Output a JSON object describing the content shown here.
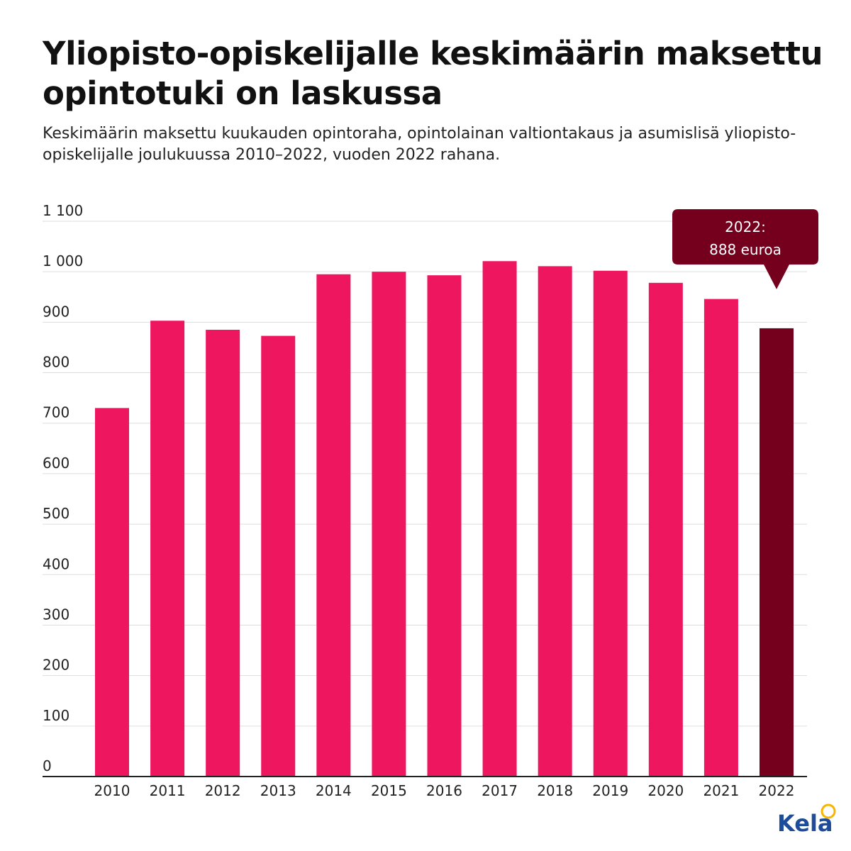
{
  "chart_data": {
    "type": "bar",
    "title": "Yliopisto-opiskelijalle keskimäärin maksettu opintotuki on laskussa",
    "subtitle": "Keskimäärin maksettu kuukauden opintoraha, opintolainan valtiontakaus ja asumislisä yliopisto-opiskelijalle joulukuussa 2010–2022, vuoden 2022 rahana.",
    "categories": [
      "2010",
      "2011",
      "2012",
      "2013",
      "2014",
      "2015",
      "2016",
      "2017",
      "2018",
      "2019",
      "2020",
      "2021",
      "2022"
    ],
    "values": [
      730,
      903,
      885,
      873,
      995,
      1000,
      993,
      1021,
      1011,
      1002,
      978,
      946,
      888
    ],
    "ylim": [
      0,
      1100
    ],
    "yticks": [
      0,
      100,
      200,
      300,
      400,
      500,
      600,
      700,
      800,
      900,
      1000,
      1100
    ],
    "ytick_labels": [
      "0",
      "100",
      "200",
      "300",
      "400",
      "500",
      "600",
      "700",
      "800",
      "900",
      "1 000",
      "1 100"
    ],
    "grid": true,
    "colors": {
      "bar": "#ee165f",
      "highlight": "#74001e",
      "grid": "#dddddd",
      "axis": "#222222"
    },
    "highlight_index": 12,
    "annotation": {
      "line1": "2022:",
      "line2": "888 euroa"
    }
  },
  "logo": {
    "text": "Kela",
    "color": "#1d4c9a",
    "accent": "#f7b500"
  }
}
